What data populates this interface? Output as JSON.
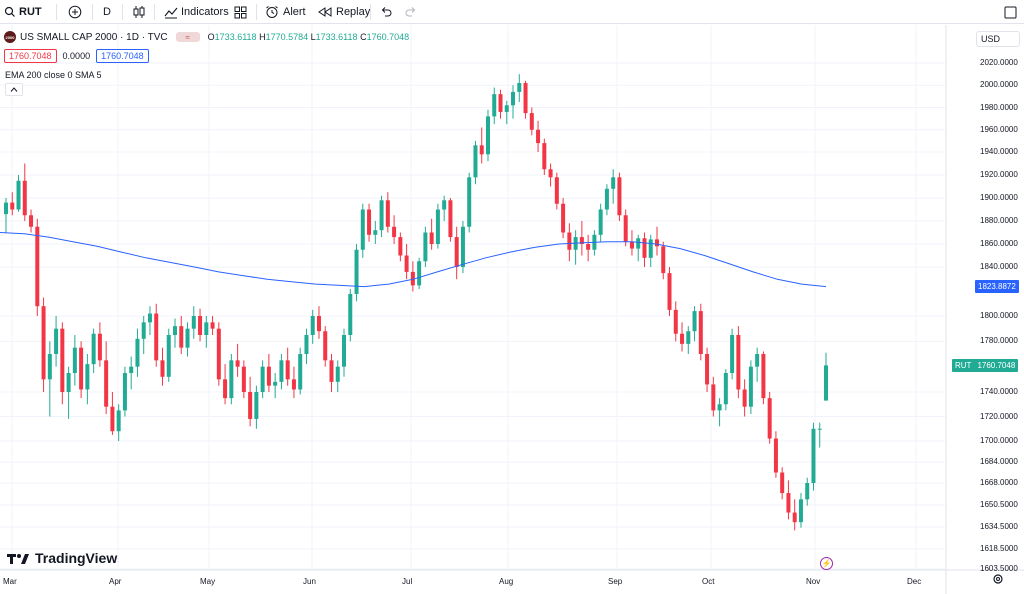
{
  "toolbar": {
    "symbol": "RUT",
    "interval": "D",
    "indicators_label": "Indicators",
    "alert_label": "Alert",
    "replay_label": "Replay"
  },
  "legend": {
    "symbol_name": "US SMALL CAP 2000 · 1D · TVC",
    "logo_text": "2000",
    "open_key": "O",
    "open": "1733.6118",
    "high_key": "H",
    "high": "1770.5784",
    "low_key": "L",
    "low": "1733.6118",
    "close_key": "C",
    "close": "1760.7048",
    "sell_price": "1760.7048",
    "spread": "0.0000",
    "buy_price": "1760.7048",
    "indicator": "EMA 200 close 0 SMA 5"
  },
  "currency": "USD",
  "colors": {
    "up": "#22ab94",
    "down": "#f23645",
    "ema": "#2962ff",
    "ema_tag": "#2962ff",
    "last_tag": "#22ab94"
  },
  "chart_data": {
    "type": "candlestick",
    "title": "US SMALL CAP 2000 · 1D · TVC",
    "y_ticks": [
      "2020.0000",
      "2000.0000",
      "1980.0000",
      "1960.0000",
      "1940.0000",
      "1920.0000",
      "1900.0000",
      "1880.0000",
      "1860.0000",
      "1840.0000",
      "1800.0000",
      "1780.0000",
      "1740.0000",
      "1720.0000",
      "1700.0000",
      "1684.0000",
      "1668.0000",
      "1650.5000",
      "1634.5000",
      "1618.5000",
      "1603.5000"
    ],
    "x_ticks": [
      "Mar",
      "Apr",
      "May",
      "Jun",
      "Jul",
      "Aug",
      "Sep",
      "Oct",
      "Nov",
      "Dec"
    ],
    "last_price": "1760.7048",
    "last_label": "RUT",
    "ema_value": "1823.8872",
    "series": [
      {
        "name": "RUT",
        "type": "candles",
        "ohlc": [
          [
            1886,
            1900,
            1870,
            1896
          ],
          [
            1896,
            1905,
            1885,
            1890
          ],
          [
            1890,
            1920,
            1888,
            1915
          ],
          [
            1915,
            1930,
            1880,
            1885
          ],
          [
            1885,
            1890,
            1870,
            1875
          ],
          [
            1875,
            1882,
            1800,
            1808
          ],
          [
            1808,
            1815,
            1740,
            1750
          ],
          [
            1750,
            1780,
            1720,
            1770
          ],
          [
            1770,
            1800,
            1760,
            1790
          ],
          [
            1790,
            1795,
            1730,
            1740
          ],
          [
            1740,
            1760,
            1718,
            1755
          ],
          [
            1755,
            1785,
            1745,
            1775
          ],
          [
            1775,
            1780,
            1735,
            1742
          ],
          [
            1742,
            1770,
            1730,
            1762
          ],
          [
            1762,
            1790,
            1755,
            1786
          ],
          [
            1786,
            1795,
            1760,
            1765
          ],
          [
            1765,
            1780,
            1722,
            1728
          ],
          [
            1728,
            1740,
            1705,
            1708
          ],
          [
            1708,
            1730,
            1700,
            1725
          ],
          [
            1725,
            1760,
            1720,
            1755
          ],
          [
            1755,
            1768,
            1742,
            1760
          ],
          [
            1760,
            1790,
            1752,
            1782
          ],
          [
            1782,
            1800,
            1770,
            1795
          ],
          [
            1795,
            1808,
            1785,
            1802
          ],
          [
            1802,
            1810,
            1760,
            1765
          ],
          [
            1765,
            1775,
            1745,
            1752
          ],
          [
            1752,
            1790,
            1748,
            1785
          ],
          [
            1785,
            1798,
            1775,
            1792
          ],
          [
            1792,
            1800,
            1770,
            1775
          ],
          [
            1775,
            1795,
            1768,
            1790
          ],
          [
            1790,
            1808,
            1782,
            1800
          ],
          [
            1800,
            1806,
            1780,
            1785
          ],
          [
            1785,
            1800,
            1775,
            1795
          ],
          [
            1795,
            1800,
            1785,
            1790
          ],
          [
            1790,
            1795,
            1745,
            1750
          ],
          [
            1750,
            1762,
            1730,
            1735
          ],
          [
            1735,
            1770,
            1730,
            1765
          ],
          [
            1765,
            1778,
            1752,
            1760
          ],
          [
            1760,
            1765,
            1735,
            1740
          ],
          [
            1740,
            1752,
            1712,
            1718
          ],
          [
            1718,
            1745,
            1710,
            1740
          ],
          [
            1740,
            1765,
            1735,
            1760
          ],
          [
            1760,
            1770,
            1740,
            1745
          ],
          [
            1745,
            1755,
            1735,
            1748
          ],
          [
            1748,
            1770,
            1742,
            1765
          ],
          [
            1765,
            1775,
            1745,
            1750
          ],
          [
            1750,
            1760,
            1735,
            1742
          ],
          [
            1742,
            1775,
            1738,
            1770
          ],
          [
            1770,
            1790,
            1762,
            1785
          ],
          [
            1785,
            1805,
            1778,
            1800
          ],
          [
            1800,
            1808,
            1782,
            1788
          ],
          [
            1788,
            1792,
            1760,
            1765
          ],
          [
            1765,
            1770,
            1740,
            1748
          ],
          [
            1748,
            1765,
            1740,
            1760
          ],
          [
            1760,
            1790,
            1752,
            1785
          ],
          [
            1785,
            1822,
            1780,
            1818
          ],
          [
            1818,
            1860,
            1812,
            1855
          ],
          [
            1855,
            1895,
            1848,
            1890
          ],
          [
            1890,
            1895,
            1862,
            1868
          ],
          [
            1868,
            1880,
            1860,
            1872
          ],
          [
            1872,
            1902,
            1866,
            1898
          ],
          [
            1898,
            1905,
            1870,
            1875
          ],
          [
            1875,
            1885,
            1860,
            1866
          ],
          [
            1866,
            1870,
            1845,
            1850
          ],
          [
            1850,
            1860,
            1830,
            1836
          ],
          [
            1836,
            1845,
            1820,
            1825
          ],
          [
            1825,
            1848,
            1822,
            1845
          ],
          [
            1845,
            1875,
            1840,
            1870
          ],
          [
            1870,
            1882,
            1855,
            1860
          ],
          [
            1860,
            1895,
            1856,
            1890
          ],
          [
            1890,
            1902,
            1880,
            1898
          ],
          [
            1898,
            1900,
            1862,
            1866
          ],
          [
            1866,
            1875,
            1830,
            1840
          ],
          [
            1840,
            1880,
            1835,
            1875
          ],
          [
            1875,
            1922,
            1870,
            1918
          ],
          [
            1918,
            1950,
            1912,
            1946
          ],
          [
            1946,
            1962,
            1930,
            1938
          ],
          [
            1938,
            1978,
            1932,
            1972
          ],
          [
            1972,
            1998,
            1965,
            1992
          ],
          [
            1992,
            1996,
            1970,
            1976
          ],
          [
            1976,
            1986,
            1965,
            1982
          ],
          [
            1982,
            2000,
            1970,
            1994
          ],
          [
            1994,
            2010,
            1985,
            2002
          ],
          [
            2002,
            2004,
            1970,
            1975
          ],
          [
            1975,
            1980,
            1955,
            1960
          ],
          [
            1960,
            1968,
            1940,
            1948
          ],
          [
            1948,
            1952,
            1920,
            1925
          ],
          [
            1925,
            1930,
            1910,
            1918
          ],
          [
            1918,
            1922,
            1890,
            1895
          ],
          [
            1895,
            1900,
            1865,
            1870
          ],
          [
            1870,
            1878,
            1845,
            1855
          ],
          [
            1855,
            1872,
            1842,
            1866
          ],
          [
            1866,
            1880,
            1850,
            1860
          ],
          [
            1860,
            1868,
            1845,
            1855
          ],
          [
            1855,
            1872,
            1850,
            1868
          ],
          [
            1868,
            1895,
            1862,
            1890
          ],
          [
            1890,
            1912,
            1885,
            1908
          ],
          [
            1908,
            1925,
            1895,
            1918
          ],
          [
            1918,
            1922,
            1880,
            1885
          ],
          [
            1885,
            1890,
            1858,
            1862
          ],
          [
            1862,
            1872,
            1850,
            1856
          ],
          [
            1856,
            1868,
            1845,
            1865
          ],
          [
            1865,
            1870,
            1840,
            1848
          ],
          [
            1848,
            1868,
            1840,
            1864
          ],
          [
            1864,
            1875,
            1850,
            1858
          ],
          [
            1858,
            1862,
            1830,
            1835
          ],
          [
            1835,
            1840,
            1800,
            1805
          ],
          [
            1805,
            1812,
            1780,
            1786
          ],
          [
            1786,
            1795,
            1772,
            1778
          ],
          [
            1778,
            1792,
            1770,
            1788
          ],
          [
            1788,
            1808,
            1780,
            1804
          ],
          [
            1804,
            1810,
            1765,
            1770
          ],
          [
            1770,
            1775,
            1740,
            1746
          ],
          [
            1746,
            1752,
            1720,
            1725
          ],
          [
            1725,
            1735,
            1712,
            1730
          ],
          [
            1730,
            1758,
            1725,
            1755
          ],
          [
            1755,
            1790,
            1750,
            1785
          ],
          [
            1785,
            1792,
            1735,
            1742
          ],
          [
            1742,
            1750,
            1720,
            1728
          ],
          [
            1728,
            1765,
            1722,
            1760
          ],
          [
            1760,
            1775,
            1748,
            1770
          ],
          [
            1770,
            1772,
            1730,
            1735
          ],
          [
            1735,
            1740,
            1698,
            1702
          ],
          [
            1702,
            1708,
            1672,
            1676
          ],
          [
            1676,
            1680,
            1655,
            1660
          ],
          [
            1660,
            1670,
            1640,
            1645
          ],
          [
            1645,
            1655,
            1632,
            1638
          ],
          [
            1638,
            1660,
            1634,
            1655
          ],
          [
            1655,
            1672,
            1650,
            1668
          ],
          [
            1668,
            1715,
            1662,
            1710
          ],
          [
            1710,
            1715,
            1695,
            1710
          ],
          [
            1733,
            1771,
            1733,
            1761
          ]
        ]
      },
      {
        "name": "EMA 200",
        "type": "line",
        "values": [
          1870,
          1869,
          1866,
          1862,
          1858,
          1853,
          1848,
          1844,
          1840,
          1836,
          1833,
          1830,
          1828,
          1826,
          1825,
          1824,
          1826,
          1830,
          1836,
          1842,
          1848,
          1853,
          1857,
          1860,
          1861,
          1862,
          1862,
          1860,
          1856,
          1850,
          1843,
          1836,
          1830,
          1826,
          1824
        ]
      }
    ]
  }
}
